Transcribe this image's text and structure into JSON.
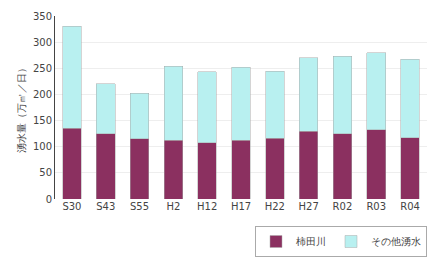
{
  "chart_data": {
    "type": "bar",
    "stacked": true,
    "categories": [
      "S30",
      "S43",
      "S55",
      "H2",
      "H12",
      "H17",
      "H22",
      "H27",
      "R02",
      "R03",
      "R04"
    ],
    "series": [
      {
        "name": "柿田川",
        "color": "#8b3060",
        "values": [
          135,
          125,
          115,
          112,
          108,
          112,
          116,
          130,
          125,
          132,
          117
        ]
      },
      {
        "name": "その他湧水",
        "color": "#b8f0f0",
        "values": [
          195,
          95,
          87,
          142,
          135,
          140,
          128,
          140,
          148,
          148,
          150
        ]
      }
    ],
    "ylabel": "湧水量（万㎥／日）",
    "ylim": [
      0,
      350
    ],
    "yticks": [
      0,
      50,
      100,
      150,
      200,
      250,
      300,
      350
    ],
    "grid": true,
    "legend": "lower right"
  }
}
